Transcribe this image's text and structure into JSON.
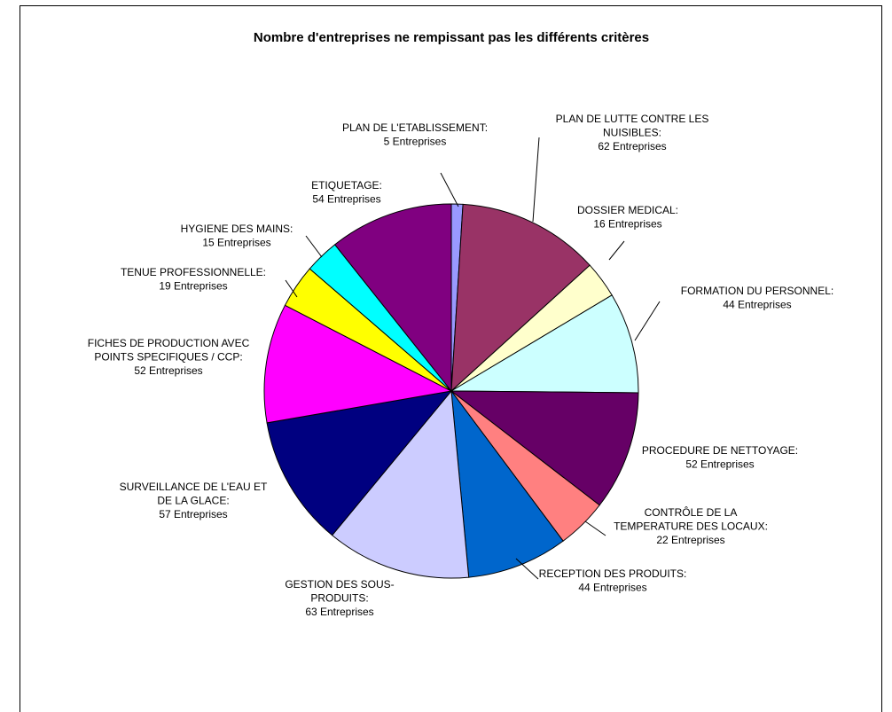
{
  "chart_data": {
    "type": "pie",
    "title": "Nombre d'entreprises ne rempissant pas les différents critères",
    "unit": "Entreprises",
    "slices": [
      {
        "label": "PLAN DE L'ETABLISSEMENT:",
        "value": 5,
        "value_text": "5 Entreprises",
        "color": "#9999ff"
      },
      {
        "label": "PLAN DE LUTTE CONTRE LES NUISIBLES:",
        "value": 62,
        "value_text": "62 Entreprises",
        "color": "#993366"
      },
      {
        "label": "DOSSIER MEDICAL:",
        "value": 16,
        "value_text": "16 Entreprises",
        "color": "#ffffcc"
      },
      {
        "label": "FORMATION DU PERSONNEL:",
        "value": 44,
        "value_text": "44 Entreprises",
        "color": "#ccffff"
      },
      {
        "label": "PROCEDURE DE NETTOYAGE:",
        "value": 52,
        "value_text": "52 Entreprises",
        "color": "#660066"
      },
      {
        "label": "CONTRÔLE DE LA TEMPERATURE DES LOCAUX:",
        "value": 22,
        "value_text": "22 Entreprises",
        "color": "#ff8080"
      },
      {
        "label": "RECEPTION DES PRODUITS:",
        "value": 44,
        "value_text": "44 Entreprises",
        "color": "#0066cc"
      },
      {
        "label": "GESTION DES SOUS-PRODUITS:",
        "value": 63,
        "value_text": "63 Entreprises",
        "color": "#ccccff"
      },
      {
        "label": "SURVEILLANCE DE L'EAU ET DE LA GLACE:",
        "value": 57,
        "value_text": "57 Entreprises",
        "color": "#000080"
      },
      {
        "label": "FICHES DE PRODUCTION AVEC POINTS SPECIFIQUES / CCP:",
        "value": 52,
        "value_text": "52 Entreprises",
        "color": "#ff00ff"
      },
      {
        "label": "TENUE PROFESSIONNELLE:",
        "value": 19,
        "value_text": "19 Entreprises",
        "color": "#ffff00"
      },
      {
        "label": "HYGIENE DES MAINS:",
        "value": 15,
        "value_text": "15 Entreprises",
        "color": "#00ffff"
      },
      {
        "label": "ETIQUETAGE:",
        "value": 54,
        "value_text": "54 Entreprises",
        "color": "#800080"
      }
    ]
  }
}
